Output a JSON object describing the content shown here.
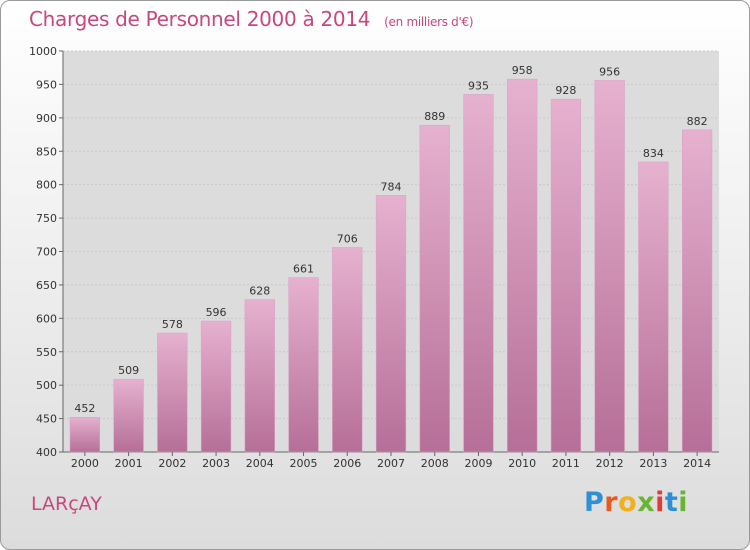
{
  "colors": {
    "title": "#c9477f",
    "bar_top": "#e6b1cf",
    "bar_bottom": "#b66f98",
    "grid": "#c8c8c8",
    "plot_bg": "#dcdcdc"
  },
  "header": {
    "title": "Charges de Personnel 2000 à 2014",
    "subtitle": "(en milliers d'€)"
  },
  "footer": {
    "commune": "LARçAY",
    "logo": {
      "letters": [
        {
          "ch": "P",
          "color": "#2f8fd6"
        },
        {
          "ch": "r",
          "color": "#e85a1f"
        },
        {
          "ch": "o",
          "color": "#f2b01e"
        },
        {
          "ch": "x",
          "color": "#6ab433"
        },
        {
          "ch": "i",
          "color": "#e23a35"
        },
        {
          "ch": "t",
          "color": "#2f8fd6"
        },
        {
          "ch": "i",
          "color": "#6ab433"
        }
      ]
    }
  },
  "chart_data": {
    "type": "bar",
    "title": "Charges de Personnel 2000 à 2014",
    "subtitle": "(en milliers d'€)",
    "categories": [
      "2000",
      "2001",
      "2002",
      "2003",
      "2004",
      "2005",
      "2006",
      "2007",
      "2008",
      "2009",
      "2010",
      "2011",
      "2012",
      "2013",
      "2014"
    ],
    "values": [
      452,
      509,
      578,
      596,
      628,
      661,
      706,
      784,
      889,
      935,
      958,
      928,
      956,
      834,
      882
    ],
    "ylim": [
      400,
      1000
    ],
    "yticks": [
      400,
      450,
      500,
      550,
      600,
      650,
      700,
      750,
      800,
      850,
      900,
      950,
      1000
    ],
    "grid": true,
    "legend": "none"
  }
}
